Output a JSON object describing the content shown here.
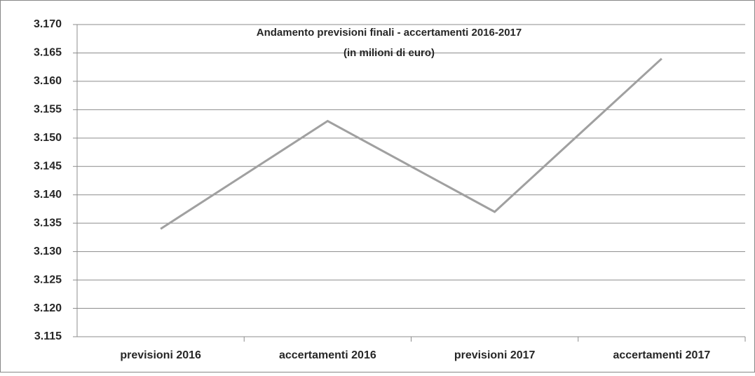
{
  "chart_data": {
    "type": "line",
    "title": [
      "Andamento previsioni finali - accertamenti 2016-2017",
      "(in milioni di euro)"
    ],
    "categories": [
      "previsioni 2016",
      "accertamenti 2016",
      "previsioni 2017",
      "accertamenti 2017"
    ],
    "series": [
      {
        "name": "Andamento",
        "color": "#a0a0a0",
        "values": [
          3134,
          3153,
          3137,
          3164
        ]
      }
    ],
    "ylim": [
      3115,
      3170
    ],
    "yticks": [
      {
        "value": 3115,
        "label": "3.115"
      },
      {
        "value": 3120,
        "label": "3.120"
      },
      {
        "value": 3125,
        "label": "3.125"
      },
      {
        "value": 3130,
        "label": "3.130"
      },
      {
        "value": 3135,
        "label": "3.135"
      },
      {
        "value": 3140,
        "label": "3.140"
      },
      {
        "value": 3145,
        "label": "3.145"
      },
      {
        "value": 3150,
        "label": "3.150"
      },
      {
        "value": 3155,
        "label": "3.155"
      },
      {
        "value": 3160,
        "label": "3.160"
      },
      {
        "value": 3165,
        "label": "3.165"
      },
      {
        "value": 3170,
        "label": "3.170"
      }
    ],
    "grid": true
  }
}
